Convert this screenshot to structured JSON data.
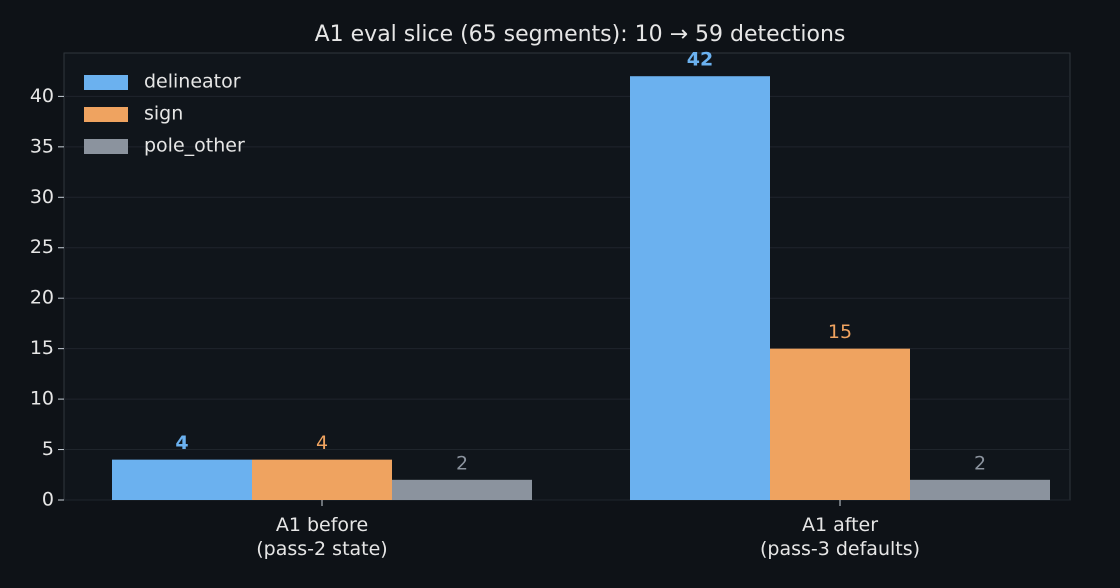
{
  "chart_data": {
    "type": "bar",
    "title": "A1 eval slice (65 segments): 10 → 59 detections",
    "categories": [
      "A1 before\n(pass-2 state)",
      "A1 after\n(pass-3 defaults)"
    ],
    "series": [
      {
        "name": "delineator",
        "color": "#6bb1ef",
        "values": [
          4,
          42
        ]
      },
      {
        "name": "sign",
        "color": "#efa360",
        "values": [
          4,
          15
        ]
      },
      {
        "name": "pole_other",
        "color": "#8b939e",
        "values": [
          2,
          2
        ]
      }
    ],
    "ylim": [
      0,
      44.3
    ],
    "yticks": [
      0,
      5,
      10,
      15,
      20,
      25,
      30,
      35,
      40
    ],
    "grid": true,
    "legend": "upper left"
  }
}
